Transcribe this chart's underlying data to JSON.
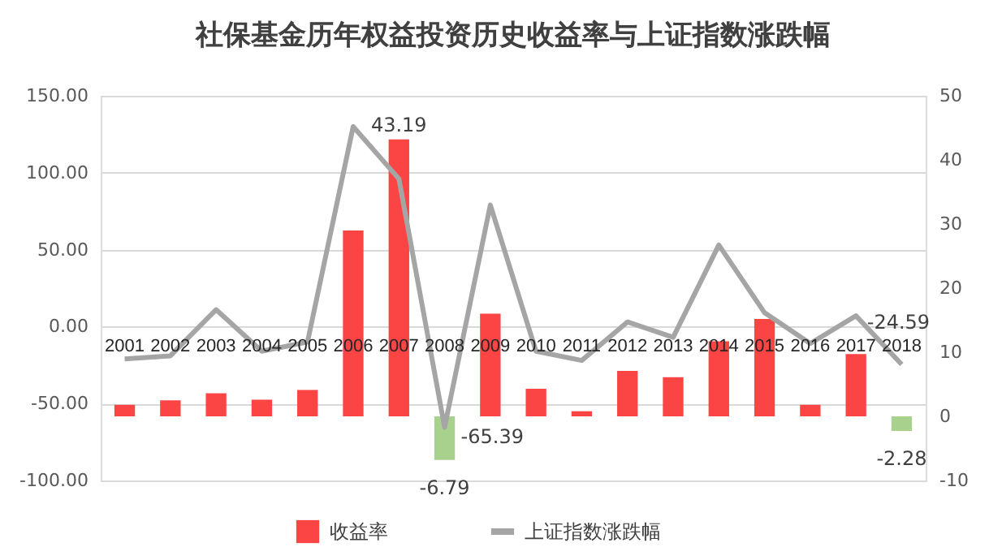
{
  "chart_data": {
    "type": "bar",
    "title": "社保基金历年权益投资历史收益率与上证指数涨跌幅",
    "categories": [
      "2001",
      "2002",
      "2003",
      "2004",
      "2005",
      "2006",
      "2007",
      "2008",
      "2009",
      "2010",
      "2011",
      "2012",
      "2013",
      "2014",
      "2015",
      "2016",
      "2017",
      "2018"
    ],
    "series": [
      {
        "name": "收益率",
        "axis": "y2",
        "color": "#fb4444",
        "colors": [
          "#fb4444",
          "#fb4444",
          "#fb4444",
          "#fb4444",
          "#fb4444",
          "#fb4444",
          "#fb4444",
          "#a9d18e",
          "#fb4444",
          "#fb4444",
          "#fb4444",
          "#fb4444",
          "#fb4444",
          "#fb4444",
          "#fb4444",
          "#fb4444",
          "#fb4444",
          "#a9d18e"
        ],
        "values": [
          1.8,
          2.5,
          3.6,
          2.6,
          4.1,
          29.0,
          43.19,
          -6.79,
          16.0,
          4.3,
          0.8,
          7.1,
          6.1,
          11.7,
          15.2,
          1.8,
          9.7,
          -2.28
        ],
        "value_labels": [
          null,
          null,
          null,
          null,
          null,
          null,
          "43.19",
          "-6.79",
          null,
          null,
          null,
          null,
          null,
          null,
          null,
          null,
          null,
          "-2.28"
        ]
      },
      {
        "name": "上证指数涨跌幅",
        "type": "line",
        "color": "#a5a5a5",
        "values": [
          -21,
          -19,
          11,
          -16,
          -10,
          130,
          96,
          -65.39,
          79,
          -16,
          -22,
          3,
          -7,
          53,
          9,
          -11,
          7,
          -24.59
        ],
        "value_labels": [
          null,
          null,
          null,
          null,
          null,
          null,
          null,
          "-65.39",
          null,
          null,
          null,
          null,
          null,
          null,
          null,
          null,
          null,
          "-24.59"
        ]
      }
    ],
    "ylim": [
      -100,
      150
    ],
    "yticks": [
      {
        "value": -100,
        "label": "-100.00"
      },
      {
        "value": -50,
        "label": "-50.00"
      },
      {
        "value": 0,
        "label": "0.00"
      },
      {
        "value": 50,
        "label": "50.00"
      },
      {
        "value": 100,
        "label": "100.00"
      },
      {
        "value": 150,
        "label": "150.00"
      }
    ],
    "y2lim": [
      -10,
      50
    ],
    "y2ticks": [
      -10,
      0,
      10,
      20,
      30,
      40,
      50
    ],
    "grid": "y",
    "legend": "bottom",
    "marker": "none",
    "line_style": "solid"
  }
}
